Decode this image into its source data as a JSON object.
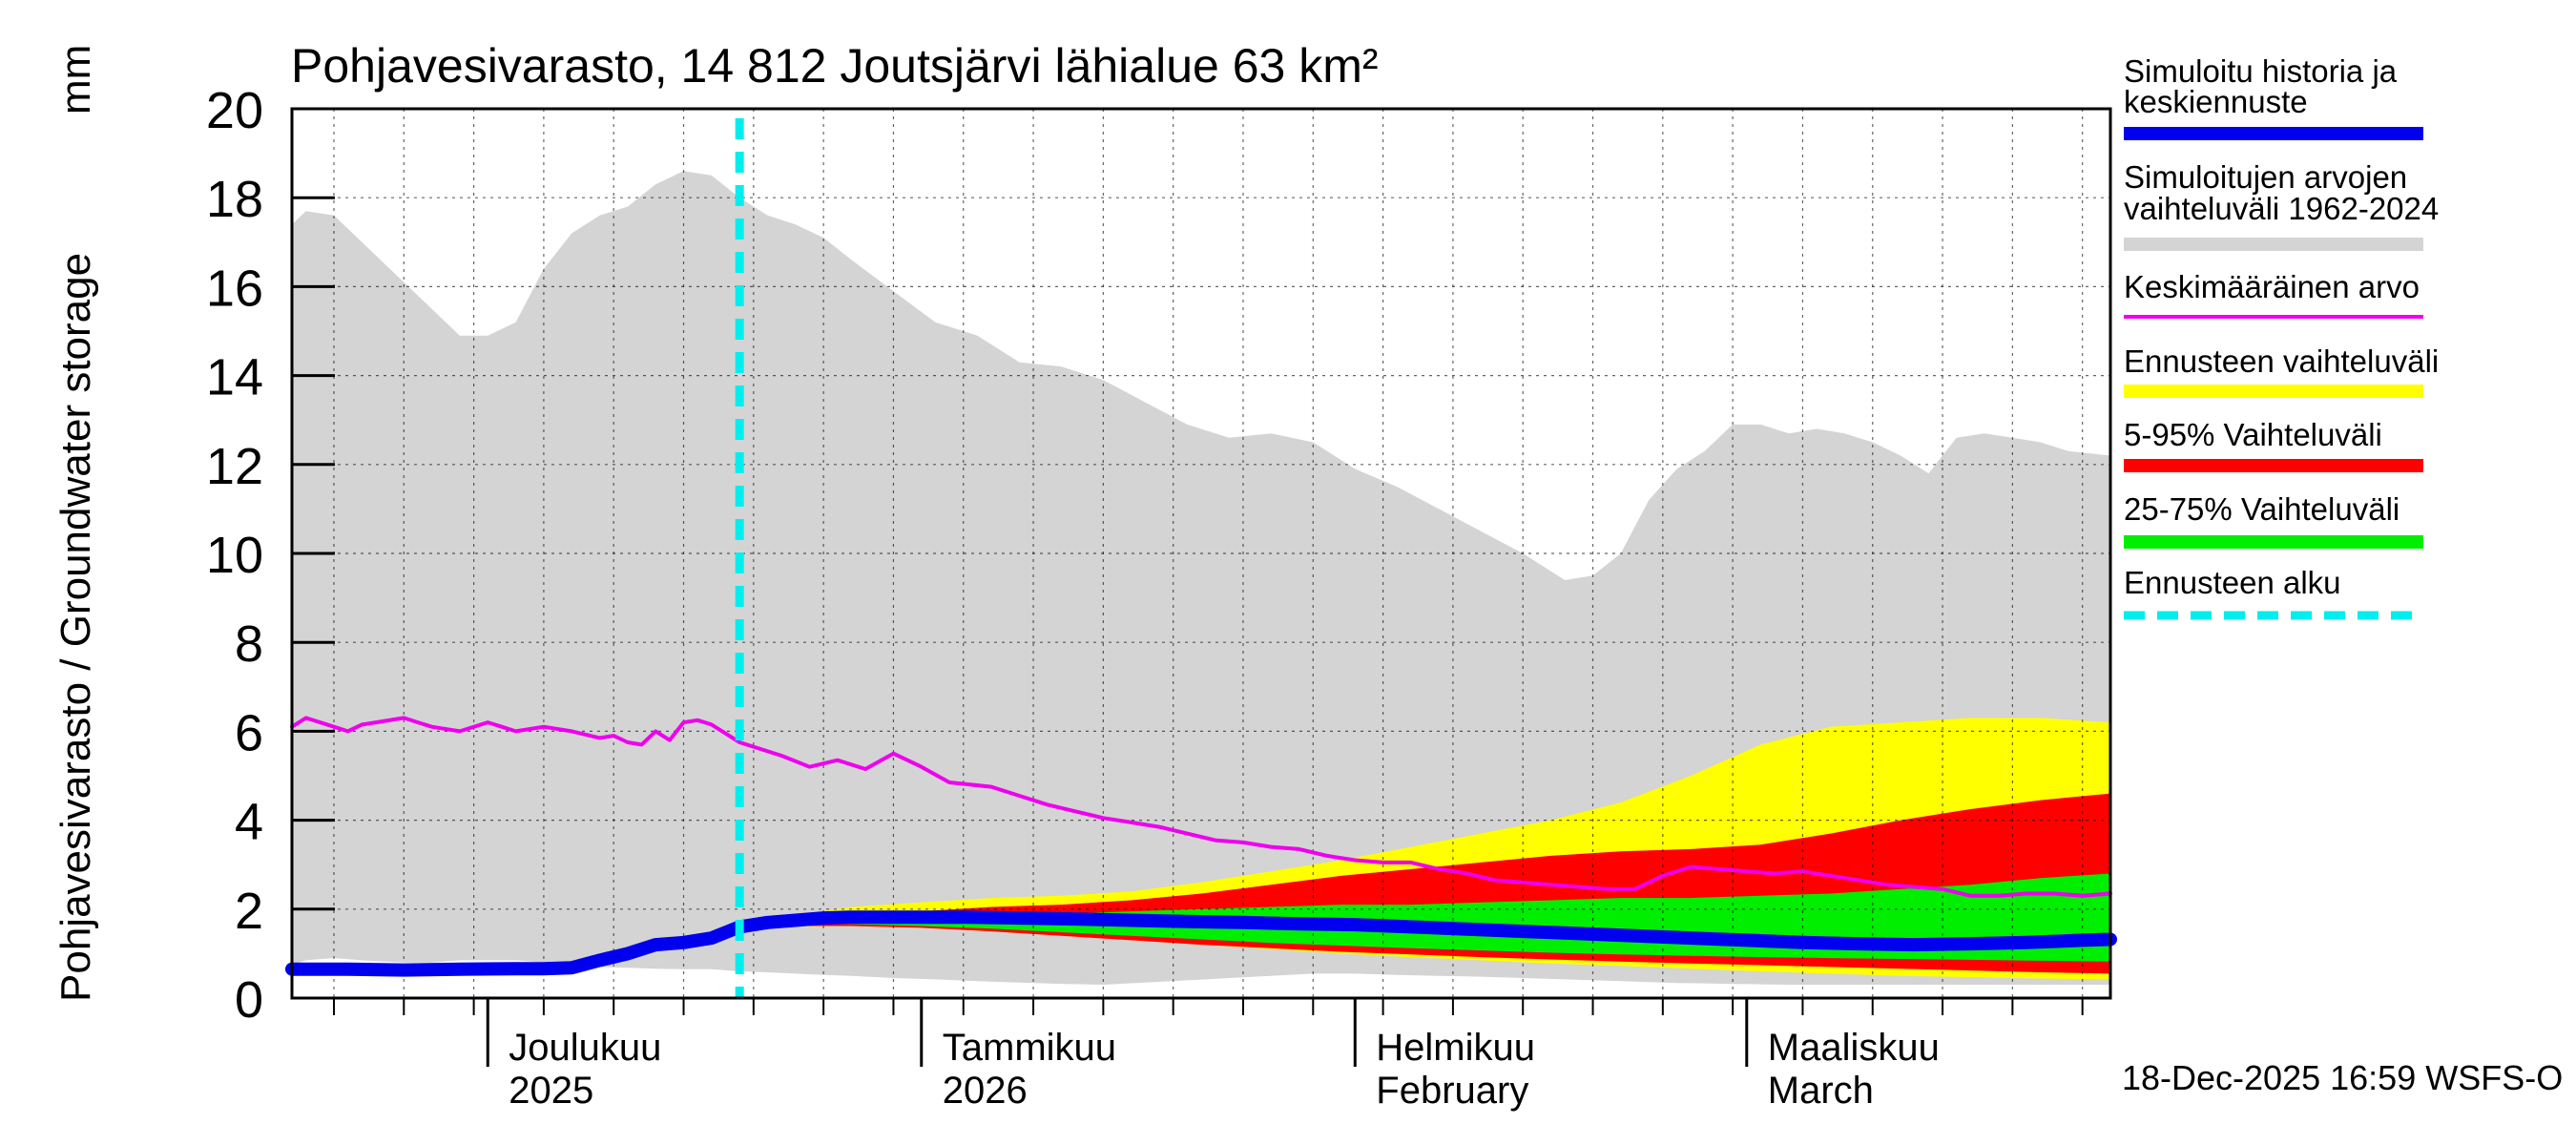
{
  "colors": {
    "range_gray": "#d4d4d4",
    "forecast_yellow": "#ffff00",
    "band_red": "#ff0000",
    "band_green": "#00ee00",
    "history_blue": "#0000ee",
    "mean_magenta": "#ee00ee",
    "start_cyan": "#00eeee"
  },
  "chart_data": {
    "type": "area",
    "title": "Pohjavesivarasto, 14 812 Joutsjärvi lähialue 63 km²",
    "ylabel": "Pohjavesivarasto / Groundwater storage",
    "yunit": "mm",
    "ylim": [
      0,
      20
    ],
    "yticks": [
      0,
      2,
      4,
      6,
      8,
      10,
      12,
      14,
      16,
      18,
      20
    ],
    "x_day_range": [
      0,
      130
    ],
    "month_ticks": [
      {
        "day": 14,
        "line1": "Joulukuu",
        "line2": "2025"
      },
      {
        "day": 45,
        "line1": "Tammikuu",
        "line2": "2026"
      },
      {
        "day": 76,
        "line1": "Helmikuu",
        "line2": "February"
      },
      {
        "day": 104,
        "line1": "Maaliskuu",
        "line2": "March"
      }
    ],
    "forecast_start_day": 32,
    "footer": "18-Dec-2025 16:59 WSFS-O",
    "legend": [
      {
        "label": "Simuloitu historia ja keskiennuste",
        "line1": "Simuloitu historia ja",
        "line2": "keskiennuste",
        "color": "#0000ee",
        "style": "thick"
      },
      {
        "label": "Simuloitujen arvojen vaihteluväli 1962-2024",
        "line1": "Simuloitujen arvojen",
        "line2": "vaihteluväli 1962-2024",
        "color": "#d4d4d4",
        "style": "band"
      },
      {
        "label": "Keskimääräinen arvo",
        "line1": "Keskimääräinen arvo",
        "line2": "",
        "color": "#ee00ee",
        "style": "thin"
      },
      {
        "label": "Ennusteen vaihteluväli",
        "line1": "Ennusteen vaihteluväli",
        "line2": "",
        "color": "#ffff00",
        "style": "band"
      },
      {
        "label": "5-95% Vaihteluväli",
        "line1": "5-95% Vaihteluväli",
        "line2": "",
        "color": "#ff0000",
        "style": "band"
      },
      {
        "label": "25-75% Vaihteluväli",
        "line1": "25-75% Vaihteluväli",
        "line2": "",
        "color": "#00ee00",
        "style": "band"
      },
      {
        "label": "Ennusteen alku",
        "line1": "Ennusteen alku",
        "line2": "",
        "color": "#00eeee",
        "style": "dashed"
      }
    ],
    "series": [
      {
        "name": "Simuloitujen arvojen vaihteluväli 1962-2024",
        "kind": "band",
        "x": [
          0,
          1,
          3,
          5,
          8,
          10,
          12,
          14,
          16,
          18,
          20,
          22,
          24,
          26,
          28,
          30,
          32,
          34,
          36,
          38,
          40,
          43,
          46,
          49,
          52,
          55,
          58,
          61,
          64,
          67,
          70,
          73,
          76,
          79,
          82,
          85,
          88,
          91,
          93,
          95,
          97,
          99,
          101,
          103,
          105,
          107,
          109,
          111,
          113,
          115,
          117,
          119,
          121,
          123,
          125,
          127,
          130
        ],
        "upper": [
          17.4,
          17.7,
          17.6,
          17.0,
          16.1,
          15.5,
          14.9,
          14.9,
          15.2,
          16.4,
          17.2,
          17.6,
          17.8,
          18.3,
          18.6,
          18.5,
          18.0,
          17.6,
          17.4,
          17.1,
          16.6,
          15.9,
          15.2,
          14.9,
          14.3,
          14.2,
          13.9,
          13.4,
          12.9,
          12.6,
          12.7,
          12.5,
          11.9,
          11.5,
          11.0,
          10.5,
          10.0,
          9.4,
          9.5,
          10.0,
          11.2,
          11.9,
          12.3,
          12.9,
          12.9,
          12.7,
          12.8,
          12.7,
          12.5,
          12.2,
          11.8,
          12.6,
          12.7,
          12.6,
          12.5,
          12.3,
          12.2
        ],
        "lower": [
          0.75,
          0.85,
          0.9,
          0.85,
          0.8,
          0.8,
          0.85,
          0.85,
          0.85,
          0.8,
          0.75,
          0.7,
          0.68,
          0.66,
          0.65,
          0.65,
          0.6,
          0.58,
          0.55,
          0.52,
          0.5,
          0.45,
          0.42,
          0.38,
          0.35,
          0.32,
          0.3,
          0.35,
          0.4,
          0.45,
          0.5,
          0.55,
          0.55,
          0.52,
          0.5,
          0.48,
          0.45,
          0.42,
          0.4,
          0.38,
          0.36,
          0.34,
          0.33,
          0.32,
          0.31,
          0.3,
          0.3,
          0.3,
          0.3,
          0.3,
          0.3,
          0.3,
          0.3,
          0.3,
          0.3,
          0.3,
          0.3
        ]
      },
      {
        "name": "Ennusteen vaihteluväli",
        "kind": "band",
        "x": [
          32,
          36,
          40,
          45,
          50,
          55,
          60,
          65,
          70,
          75,
          80,
          85,
          90,
          95,
          100,
          105,
          110,
          115,
          120,
          125,
          130
        ],
        "upper": [
          1.6,
          1.85,
          2.05,
          2.15,
          2.25,
          2.3,
          2.4,
          2.6,
          2.85,
          3.1,
          3.4,
          3.7,
          4.0,
          4.4,
          5.0,
          5.7,
          6.1,
          6.2,
          6.3,
          6.3,
          6.2
        ],
        "lower": [
          1.5,
          1.6,
          1.62,
          1.58,
          1.5,
          1.4,
          1.3,
          1.2,
          1.1,
          1.0,
          0.92,
          0.85,
          0.78,
          0.72,
          0.66,
          0.6,
          0.55,
          0.5,
          0.47,
          0.44,
          0.42
        ]
      },
      {
        "name": "5-95% Vaihteluväli",
        "kind": "band",
        "x": [
          32,
          36,
          40,
          45,
          50,
          55,
          60,
          65,
          70,
          75,
          80,
          85,
          90,
          95,
          100,
          105,
          110,
          115,
          120,
          125,
          130
        ],
        "upper": [
          1.6,
          1.75,
          1.85,
          1.95,
          2.05,
          2.1,
          2.2,
          2.35,
          2.55,
          2.75,
          2.9,
          3.05,
          3.2,
          3.3,
          3.35,
          3.45,
          3.7,
          4.0,
          4.25,
          4.45,
          4.6
        ],
        "lower": [
          1.55,
          1.62,
          1.62,
          1.58,
          1.5,
          1.4,
          1.3,
          1.2,
          1.12,
          1.04,
          0.98,
          0.92,
          0.87,
          0.82,
          0.78,
          0.74,
          0.7,
          0.66,
          0.62,
          0.58,
          0.55
        ]
      },
      {
        "name": "25-75% Vaihteluväli",
        "kind": "band",
        "x": [
          32,
          36,
          40,
          45,
          50,
          55,
          60,
          65,
          70,
          75,
          80,
          85,
          90,
          95,
          100,
          105,
          110,
          115,
          120,
          125,
          130
        ],
        "upper": [
          1.6,
          1.7,
          1.75,
          1.8,
          1.85,
          1.9,
          1.95,
          2.0,
          2.05,
          2.1,
          2.1,
          2.15,
          2.2,
          2.25,
          2.25,
          2.3,
          2.35,
          2.45,
          2.55,
          2.7,
          2.8
        ],
        "lower": [
          1.58,
          1.65,
          1.66,
          1.62,
          1.56,
          1.48,
          1.4,
          1.32,
          1.24,
          1.18,
          1.12,
          1.07,
          1.02,
          0.98,
          0.95,
          0.92,
          0.9,
          0.88,
          0.86,
          0.84,
          0.82
        ]
      },
      {
        "name": "Keskimääräinen arvo",
        "kind": "line",
        "x": [
          0,
          1,
          3,
          4,
          5,
          6,
          8,
          9,
          10,
          12,
          14,
          15,
          16,
          18,
          20,
          22,
          23,
          24,
          25,
          26,
          27,
          28,
          29,
          30,
          32,
          35,
          37,
          39,
          41,
          43,
          45,
          47,
          50,
          52,
          54,
          56,
          58,
          60,
          62,
          64,
          66,
          68,
          70,
          72,
          74,
          76,
          78,
          80,
          82,
          84,
          86,
          88,
          90,
          92,
          94,
          96,
          98,
          100,
          102,
          104,
          106,
          108,
          110,
          112,
          114,
          116,
          118,
          120,
          122,
          124,
          126,
          128,
          130
        ],
        "y": [
          6.1,
          6.3,
          6.1,
          6.0,
          6.15,
          6.2,
          6.3,
          6.2,
          6.1,
          6.0,
          6.2,
          6.1,
          6.0,
          6.1,
          6.0,
          5.85,
          5.9,
          5.75,
          5.7,
          6.0,
          5.8,
          6.2,
          6.25,
          6.15,
          5.75,
          5.45,
          5.2,
          5.35,
          5.15,
          5.5,
          5.2,
          4.85,
          4.75,
          4.55,
          4.35,
          4.2,
          4.05,
          3.95,
          3.85,
          3.7,
          3.55,
          3.5,
          3.4,
          3.35,
          3.2,
          3.1,
          3.05,
          3.05,
          2.9,
          2.8,
          2.65,
          2.6,
          2.55,
          2.5,
          2.45,
          2.45,
          2.75,
          2.95,
          2.9,
          2.85,
          2.8,
          2.85,
          2.75,
          2.65,
          2.55,
          2.5,
          2.45,
          2.3,
          2.3,
          2.35,
          2.35,
          2.3,
          2.35
        ]
      },
      {
        "name": "Simuloitu historia ja keskiennuste",
        "kind": "line",
        "x": [
          0,
          4,
          8,
          12,
          16,
          18,
          20,
          22,
          24,
          26,
          28,
          30,
          32,
          34,
          36,
          38,
          40,
          44,
          48,
          52,
          56,
          60,
          64,
          68,
          72,
          76,
          80,
          84,
          88,
          92,
          96,
          100,
          104,
          108,
          112,
          116,
          120,
          124,
          128,
          130
        ],
        "y": [
          0.65,
          0.65,
          0.63,
          0.65,
          0.66,
          0.66,
          0.68,
          0.85,
          1.0,
          1.2,
          1.25,
          1.35,
          1.6,
          1.7,
          1.75,
          1.8,
          1.82,
          1.82,
          1.82,
          1.8,
          1.78,
          1.75,
          1.72,
          1.7,
          1.67,
          1.65,
          1.6,
          1.55,
          1.5,
          1.45,
          1.4,
          1.35,
          1.3,
          1.25,
          1.22,
          1.2,
          1.22,
          1.25,
          1.3,
          1.32
        ]
      }
    ]
  }
}
